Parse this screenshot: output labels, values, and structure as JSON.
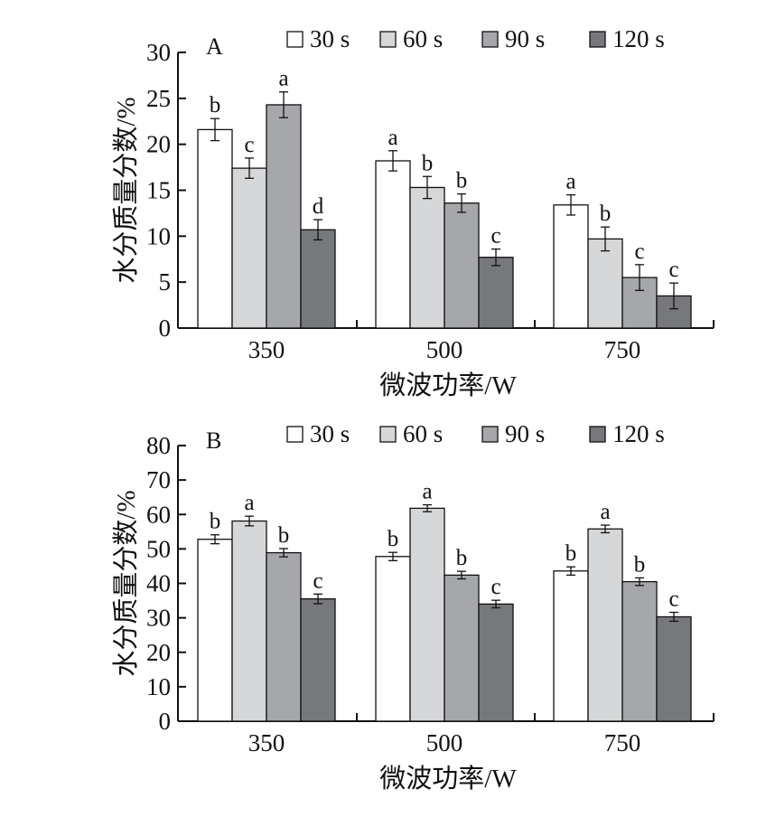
{
  "chart_data": [
    {
      "type": "bar",
      "panel_label": "A",
      "categories": [
        "350",
        "500",
        "750"
      ],
      "series": [
        {
          "name": "30 s",
          "values": [
            21.6,
            18.2,
            13.4
          ],
          "errors": [
            1.2,
            1.1,
            1.1
          ],
          "letters": [
            "b",
            "a",
            "a"
          ],
          "color": "#ffffff"
        },
        {
          "name": "60 s",
          "values": [
            17.4,
            15.3,
            9.7
          ],
          "errors": [
            1.1,
            1.2,
            1.3
          ],
          "letters": [
            "c",
            "b",
            "b"
          ],
          "color": "#d6d7d9"
        },
        {
          "name": "90 s",
          "values": [
            24.3,
            13.6,
            5.5
          ],
          "errors": [
            1.4,
            1.0,
            1.4
          ],
          "letters": [
            "a",
            "b",
            "c"
          ],
          "color": "#a5a7aa"
        },
        {
          "name": "120 s",
          "values": [
            10.7,
            7.7,
            3.5
          ],
          "errors": [
            1.1,
            0.9,
            1.4
          ],
          "letters": [
            "d",
            "c",
            "c"
          ],
          "color": "#76787c"
        }
      ],
      "xlabel": "微波功率/W",
      "ylabel": "水分质量分数/%",
      "ylim": [
        0,
        30
      ],
      "yticks": [
        0,
        5,
        10,
        15,
        20,
        25,
        30
      ],
      "legend": "top"
    },
    {
      "type": "bar",
      "panel_label": "B",
      "categories": [
        "350",
        "500",
        "750"
      ],
      "series": [
        {
          "name": "30 s",
          "values": [
            52.8,
            47.8,
            43.6
          ],
          "errors": [
            1.3,
            1.2,
            1.2
          ],
          "letters": [
            "b",
            "b",
            "b"
          ],
          "color": "#ffffff"
        },
        {
          "name": "60 s",
          "values": [
            58.1,
            61.8,
            55.8
          ],
          "errors": [
            1.4,
            1.0,
            1.1
          ],
          "letters": [
            "a",
            "a",
            "a"
          ],
          "color": "#d6d7d9"
        },
        {
          "name": "90 s",
          "values": [
            48.9,
            42.4,
            40.5
          ],
          "errors": [
            1.2,
            1.1,
            1.1
          ],
          "letters": [
            "b",
            "b",
            "b"
          ],
          "color": "#a5a7aa"
        },
        {
          "name": "120 s",
          "values": [
            35.5,
            34.0,
            30.3
          ],
          "errors": [
            1.4,
            1.1,
            1.3
          ],
          "letters": [
            "c",
            "c",
            "c"
          ],
          "color": "#76787c"
        }
      ],
      "xlabel": "微波功率/W",
      "ylabel": "水分质量分数/%",
      "ylim": [
        0,
        80
      ],
      "yticks": [
        0,
        10,
        20,
        30,
        40,
        50,
        60,
        70,
        80
      ],
      "legend": "top"
    }
  ]
}
